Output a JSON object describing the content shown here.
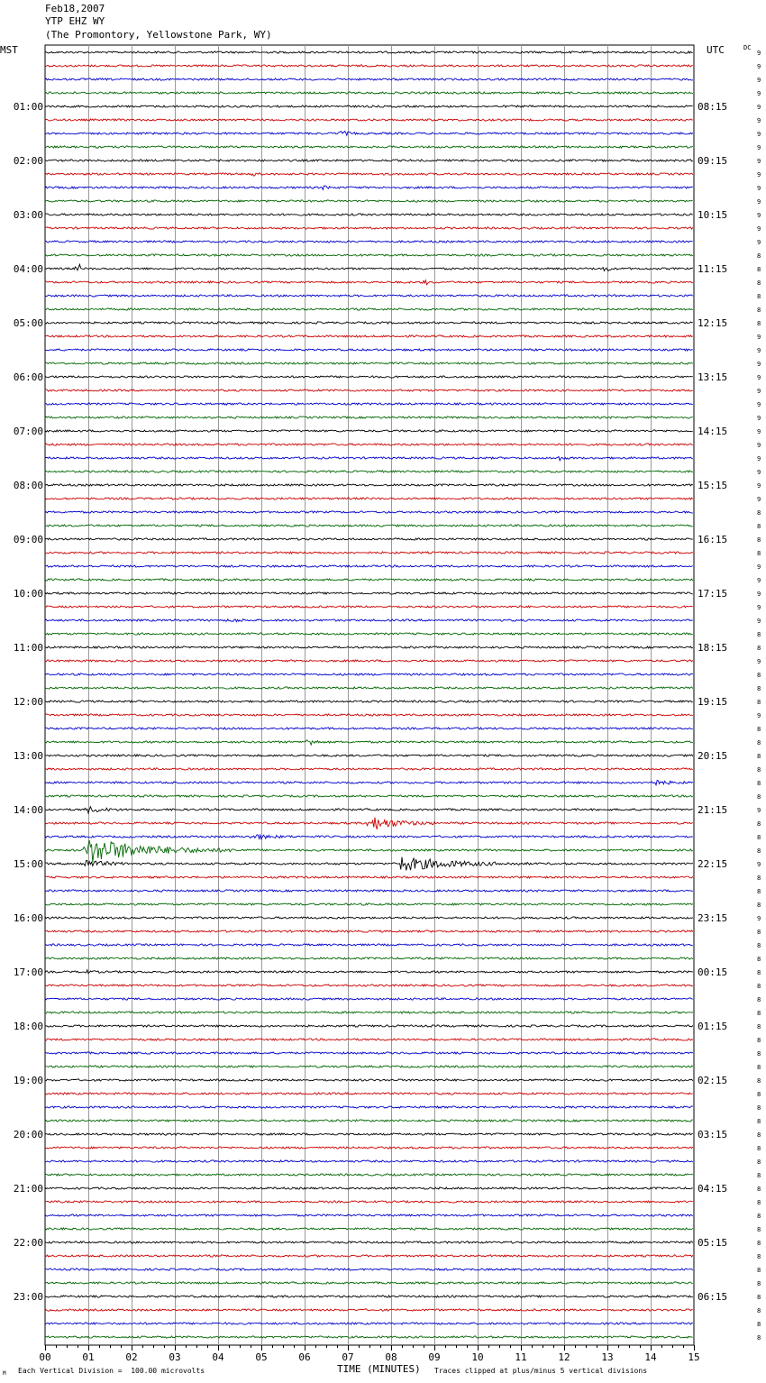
{
  "header": {
    "date": "Feb18,2007",
    "station": "YTP EHZ WY",
    "location": "(The Promontory, Yellowstone Park, WY)"
  },
  "corners": {
    "left": "MST",
    "right": "UTC",
    "dc": "DC"
  },
  "footer": {
    "scale_note": "Each Vertical Division =  100.00 microvolts",
    "clip_note": "Traces clipped at plus/minus 5 vertical divisions",
    "corner_mark": "M"
  },
  "colors": {
    "cycle": [
      "#000000",
      "#cc0000",
      "#0000cc",
      "#006600"
    ],
    "grid": "#999999"
  },
  "chart_data": {
    "type": "line",
    "title": "YTP EHZ WY",
    "xlabel": "TIME (MINUTES)",
    "xlim": [
      0,
      15
    ],
    "x_ticks": [
      "00",
      "01",
      "02",
      "03",
      "04",
      "05",
      "06",
      "07",
      "08",
      "09",
      "10",
      "11",
      "12",
      "13",
      "14",
      "15"
    ],
    "trace_minutes": 15,
    "trace_count": 96,
    "left_hour_labels": [
      "01:00",
      "02:00",
      "03:00",
      "04:00",
      "05:00",
      "06:00",
      "07:00",
      "08:00",
      "09:00",
      "10:00",
      "11:00",
      "12:00",
      "13:00",
      "14:00",
      "15:00",
      "16:00",
      "17:00",
      "18:00",
      "19:00",
      "20:00",
      "21:00",
      "22:00",
      "23:00"
    ],
    "right_hour_labels": [
      "08:15",
      "09:15",
      "10:15",
      "11:15",
      "12:15",
      "13:15",
      "14:15",
      "15:15",
      "16:15",
      "17:15",
      "18:15",
      "19:15",
      "20:15",
      "21:15",
      "22:15",
      "23:15",
      "00:15",
      "01:15",
      "02:15",
      "03:15",
      "04:15",
      "05:15",
      "06:15"
    ],
    "right_digit_labels": [
      "9",
      "9",
      "9",
      "9",
      "9",
      "9",
      "9",
      "9",
      "9",
      "9",
      "9",
      "9",
      "9",
      "9",
      "9",
      "8",
      "8",
      "8",
      "8",
      "8",
      "8",
      "9",
      "9",
      "9",
      "9",
      "9",
      "9",
      "9",
      "9",
      "9",
      "9",
      "9",
      "9",
      "9",
      "8",
      "8",
      "8",
      "8",
      "9",
      "9",
      "9",
      "9",
      "9",
      "8",
      "8",
      "9",
      "8",
      "8",
      "8",
      "9",
      "8",
      "8",
      "8",
      "8",
      "8",
      "8",
      "9",
      "8",
      "8",
      "8",
      "9",
      "8",
      "8",
      "8",
      "9",
      "8",
      "8",
      "8",
      "8",
      "8",
      "8",
      "8",
      "8",
      "8",
      "8",
      "8",
      "8",
      "8",
      "8",
      "8",
      "8",
      "8",
      "8",
      "8",
      "8",
      "8",
      "8",
      "8",
      "8",
      "8",
      "8",
      "8",
      "8",
      "8",
      "8",
      "8"
    ],
    "events": [
      {
        "trace": 6,
        "minute": 6.8,
        "amplitude": 0.4,
        "duration": 0.5
      },
      {
        "trace": 9,
        "minute": 4.8,
        "amplitude": 0.3,
        "duration": 0.2
      },
      {
        "trace": 10,
        "minute": 6.5,
        "amplitude": 0.7,
        "duration": 0.1
      },
      {
        "trace": 16,
        "minute": 0.8,
        "amplitude": 0.5,
        "duration": 0.1
      },
      {
        "trace": 16,
        "minute": 13.0,
        "amplitude": 0.7,
        "duration": 0.1
      },
      {
        "trace": 17,
        "minute": 8.8,
        "amplitude": 0.6,
        "duration": 0.1
      },
      {
        "trace": 30,
        "minute": 11.9,
        "amplitude": 0.4,
        "duration": 0.2
      },
      {
        "trace": 42,
        "minute": 4.3,
        "amplitude": 0.3,
        "duration": 0.4
      },
      {
        "trace": 51,
        "minute": 6.1,
        "amplitude": 0.8,
        "duration": 0.3
      },
      {
        "trace": 54,
        "minute": 14.0,
        "amplitude": 0.4,
        "duration": 1.0
      },
      {
        "trace": 56,
        "minute": 1.0,
        "amplitude": 0.4,
        "duration": 1.0
      },
      {
        "trace": 57,
        "minute": 7.5,
        "amplitude": 1.1,
        "duration": 1.6
      },
      {
        "trace": 58,
        "minute": 4.8,
        "amplitude": 0.4,
        "duration": 1.0
      },
      {
        "trace": 59,
        "minute": 1.0,
        "amplitude": 1.9,
        "duration": 3.5
      },
      {
        "trace": 60,
        "minute": 0.9,
        "amplitude": 0.6,
        "duration": 1.2
      },
      {
        "trace": 60,
        "minute": 8.2,
        "amplitude": 1.1,
        "duration": 3.0
      },
      {
        "trace": 68,
        "minute": 0.9,
        "amplitude": 0.3,
        "duration": 0.4
      }
    ]
  }
}
